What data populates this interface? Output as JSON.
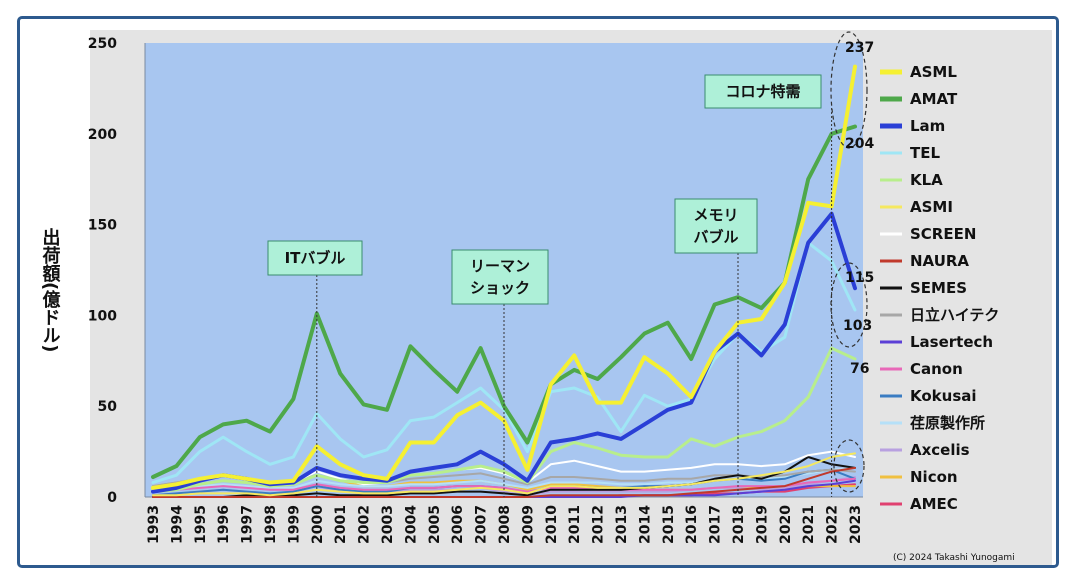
{
  "chart_data": {
    "type": "line",
    "ylabel": "出荷額(億ドル)",
    "ylim": [
      0,
      250
    ],
    "yticks": [
      0,
      50,
      100,
      150,
      200,
      250
    ],
    "x": [
      "1993",
      "1994",
      "1995",
      "1996",
      "1997",
      "1998",
      "1999",
      "2000",
      "2001",
      "2002",
      "2003",
      "2004",
      "2005",
      "2006",
      "2007",
      "2008",
      "2009",
      "2010",
      "2011",
      "2012",
      "2013",
      "2014",
      "2015",
      "2016",
      "2017",
      "2018",
      "2019",
      "2020",
      "2021",
      "2022",
      "2023"
    ],
    "grid": false,
    "legend_position": "right",
    "series": [
      {
        "name": "ASML",
        "color": "#f5f032",
        "values": [
          5,
          7,
          10,
          12,
          10,
          8,
          9,
          28,
          18,
          12,
          10,
          30,
          30,
          45,
          52,
          42,
          15,
          62,
          78,
          52,
          52,
          77,
          68,
          55,
          80,
          96,
          98,
          118,
          162,
          160,
          237
        ]
      },
      {
        "name": "AMAT",
        "color": "#4ea84a",
        "values": [
          11,
          17,
          33,
          40,
          42,
          36,
          54,
          101,
          68,
          51,
          48,
          83,
          70,
          58,
          82,
          50,
          30,
          62,
          70,
          65,
          77,
          90,
          96,
          76,
          106,
          110,
          104,
          118,
          175,
          200,
          204
        ]
      },
      {
        "name": "Lam",
        "color": "#2a3fd6",
        "values": [
          3,
          5,
          9,
          12,
          10,
          7,
          8,
          16,
          12,
          10,
          9,
          14,
          16,
          18,
          25,
          18,
          9,
          30,
          32,
          35,
          32,
          40,
          48,
          52,
          80,
          90,
          78,
          95,
          140,
          156,
          115
        ]
      },
      {
        "name": "TEL",
        "color": "#9fe6f5",
        "values": [
          8,
          12,
          25,
          33,
          25,
          18,
          22,
          46,
          32,
          22,
          26,
          42,
          44,
          52,
          60,
          48,
          25,
          58,
          60,
          55,
          36,
          56,
          50,
          54,
          76,
          90,
          80,
          88,
          140,
          130,
          103
        ]
      },
      {
        "name": "KLA",
        "color": "#b8ee8c",
        "values": [
          3,
          4,
          7,
          9,
          8,
          6,
          7,
          12,
          9,
          8,
          8,
          12,
          13,
          15,
          17,
          14,
          8,
          25,
          30,
          27,
          23,
          22,
          22,
          32,
          28,
          33,
          36,
          42,
          55,
          82,
          76
        ]
      },
      {
        "name": "ASMI",
        "color": "#f5e860",
        "values": [
          1,
          1,
          2,
          2,
          2,
          1,
          2,
          4,
          3,
          2,
          2,
          3,
          3,
          4,
          5,
          4,
          2,
          6,
          6,
          5,
          5,
          5,
          6,
          7,
          9,
          10,
          12,
          14,
          17,
          22,
          24
        ]
      },
      {
        "name": "SCREEN",
        "color": "#ffffff",
        "values": [
          4,
          6,
          10,
          12,
          10,
          7,
          8,
          14,
          10,
          7,
          8,
          12,
          13,
          15,
          16,
          13,
          8,
          18,
          20,
          17,
          14,
          14,
          15,
          16,
          18,
          18,
          17,
          18,
          23,
          25,
          22
        ]
      },
      {
        "name": "NAURA",
        "color": "#c0392b",
        "values": [
          0,
          0,
          0,
          0,
          0,
          0,
          0,
          0,
          0,
          0,
          0,
          0,
          0,
          0,
          0,
          0,
          0,
          1,
          1,
          1,
          1,
          1,
          1,
          2,
          3,
          4,
          5,
          6,
          10,
          14,
          16
        ]
      },
      {
        "name": "SEMES",
        "color": "#111111",
        "values": [
          0,
          0,
          0,
          0,
          1,
          1,
          1,
          2,
          1,
          1,
          1,
          2,
          2,
          3,
          3,
          2,
          1,
          4,
          4,
          4,
          4,
          5,
          6,
          7,
          10,
          12,
          10,
          14,
          22,
          18,
          16
        ]
      },
      {
        "name": "日立ハイテク",
        "color": "#a7a7a7",
        "values": [
          6,
          8,
          10,
          12,
          10,
          8,
          9,
          12,
          9,
          8,
          8,
          10,
          11,
          12,
          13,
          10,
          7,
          11,
          11,
          10,
          9,
          9,
          10,
          10,
          12,
          12,
          11,
          12,
          14,
          15,
          14
        ]
      },
      {
        "name": "Lasertech",
        "color": "#5b3fd6",
        "values": [
          0,
          0,
          0,
          0,
          0,
          0,
          0,
          0,
          0,
          0,
          0,
          0,
          0,
          0,
          0,
          0,
          0,
          0,
          0,
          0,
          0,
          1,
          1,
          1,
          1,
          2,
          3,
          4,
          6,
          7,
          9
        ]
      },
      {
        "name": "Canon",
        "color": "#e868b8",
        "values": [
          3,
          4,
          5,
          6,
          5,
          4,
          4,
          7,
          5,
          4,
          4,
          5,
          5,
          6,
          6,
          5,
          3,
          5,
          5,
          4,
          4,
          4,
          4,
          4,
          5,
          6,
          6,
          6,
          8,
          9,
          10
        ]
      },
      {
        "name": "Kokusai",
        "color": "#3a7cc2",
        "values": [
          1,
          2,
          3,
          4,
          3,
          2,
          3,
          6,
          4,
          3,
          3,
          5,
          5,
          6,
          6,
          5,
          2,
          6,
          6,
          5,
          5,
          6,
          6,
          7,
          9,
          10,
          9,
          10,
          14,
          15,
          10
        ]
      },
      {
        "name": "荏原製作所",
        "color": "#b5e0f8",
        "values": [
          3,
          4,
          6,
          7,
          6,
          5,
          5,
          9,
          7,
          6,
          6,
          7,
          7,
          8,
          9,
          7,
          5,
          8,
          8,
          8,
          7,
          7,
          8,
          8,
          9,
          10,
          10,
          11,
          13,
          15,
          16
        ]
      },
      {
        "name": "Axcelis",
        "color": "#b8a0e0",
        "values": [
          1,
          2,
          3,
          4,
          3,
          2,
          3,
          6,
          3,
          2,
          2,
          4,
          4,
          4,
          5,
          3,
          1,
          3,
          3,
          3,
          3,
          3,
          3,
          4,
          5,
          5,
          4,
          5,
          7,
          9,
          11
        ]
      },
      {
        "name": "Nicon",
        "color": "#f0c040",
        "values": [
          6,
          8,
          10,
          12,
          10,
          7,
          8,
          12,
          9,
          6,
          6,
          8,
          8,
          9,
          9,
          7,
          4,
          7,
          7,
          6,
          5,
          4,
          4,
          4,
          5,
          5,
          5,
          5,
          6,
          6,
          6
        ]
      },
      {
        "name": "AMEC",
        "color": "#e04070",
        "values": [
          0,
          0,
          0,
          0,
          0,
          0,
          0,
          0,
          0,
          0,
          0,
          0,
          0,
          0,
          0,
          0,
          0,
          0,
          0,
          0,
          1,
          1,
          1,
          1,
          2,
          2,
          3,
          3,
          5,
          6,
          7
        ]
      }
    ],
    "annotations": [
      {
        "text_lines": [
          "ITバブル"
        ],
        "year": "2000"
      },
      {
        "text_lines": [
          "リーマン",
          "ショック"
        ],
        "year": "2008"
      },
      {
        "text_lines": [
          "メモリ",
          "バブル"
        ],
        "year": "2018"
      },
      {
        "text_lines": [
          "コロナ特需"
        ],
        "year": "2022"
      }
    ],
    "end_labels": [
      "237",
      "204",
      "115",
      "103",
      "76"
    ],
    "credit": "(C) 2024 Takashi Yunogami"
  }
}
